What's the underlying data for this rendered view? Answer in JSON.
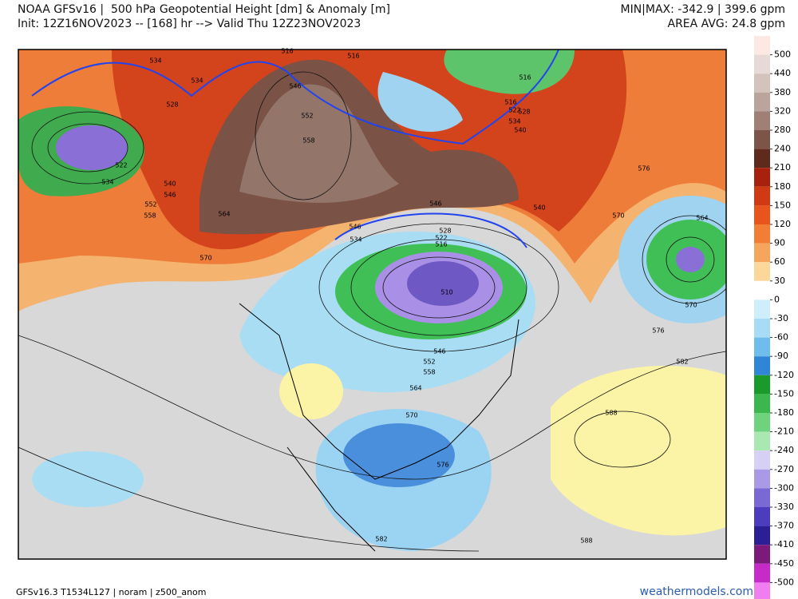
{
  "header": {
    "title": "NOAA GFSv16 |  500 hPa Geopotential Height [dm] & Anomaly [m]",
    "init": "Init: 12Z16NOV2023 -- [168] hr --> Valid Thu 12Z23NOV2023",
    "minmax": "MIN|MAX: -342.9 | 399.6 gpm",
    "area_avg": "AREA AVG: 24.8 gpm"
  },
  "colorbar": {
    "ticks": [
      500,
      440,
      380,
      320,
      280,
      240,
      210,
      180,
      150,
      120,
      90,
      60,
      30,
      0,
      -30,
      -60,
      -90,
      -120,
      -150,
      -180,
      -210,
      -240,
      -270,
      -300,
      -330,
      -370,
      -410,
      -450,
      -500
    ]
  },
  "map": {
    "contour_labels": [
      "534",
      "534",
      "528",
      "522",
      "534",
      "540",
      "546",
      "552",
      "558",
      "564",
      "570",
      "516",
      "516",
      "546",
      "552",
      "558",
      "516",
      "516",
      "522",
      "528",
      "534",
      "540",
      "576",
      "570",
      "546",
      "540",
      "546",
      "534",
      "528",
      "522",
      "516",
      "510",
      "564",
      "570",
      "576",
      "582",
      "546",
      "552",
      "558",
      "564",
      "570",
      "576",
      "588",
      "588",
      "582"
    ]
  },
  "footer": {
    "left": "GFSv16.3 T1534L127 | noram | z500_anom",
    "right": "weathermodels.com"
  }
}
